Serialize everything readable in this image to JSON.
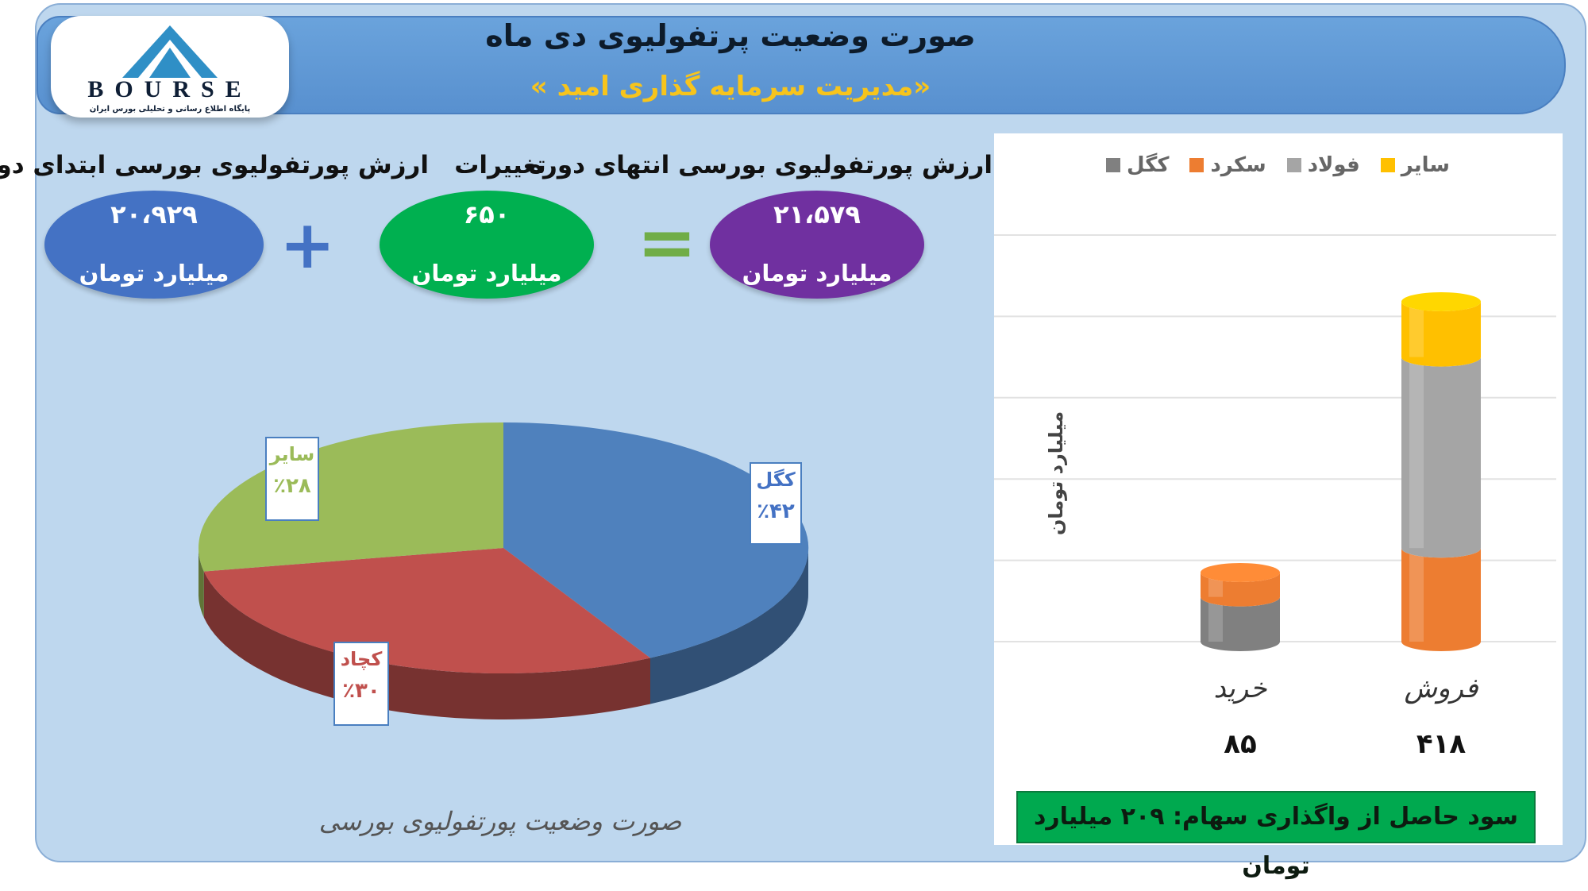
{
  "header": {
    "title": "صورت وضعیت پرتفولیوی دی ماه",
    "subtitle": "«مدیریت سرمایه گذاری امید »",
    "logo_text": "BOURSE",
    "logo_subtitle": "پایگاه اطلاع رسانی و تحلیلی بورس ایران"
  },
  "summary": {
    "start_label": "ارزش پورتفولیوی بورسی ابتدای دوره",
    "start_value": "۲۰،۹۲۹",
    "change_label": "تغییرات",
    "change_value": "۶۵۰",
    "end_label": "ارزش پورتفولیوی بورسی انتهای دوره",
    "end_value": "۲۱،۵۷۹",
    "unit": "میلیارد تومان",
    "plus_sign": "+",
    "equals_sign": "=",
    "colors": {
      "start": "#4472c4",
      "change": "#00b050",
      "end": "#7030a0",
      "plus": "#4472c4",
      "equals": "#70ad47"
    }
  },
  "chart_data": [
    {
      "type": "bar",
      "title": "",
      "ylabel": "میلیارد تومان",
      "ylim": [
        0,
        500
      ],
      "yticks": [
        0,
        100,
        200,
        300,
        400,
        500
      ],
      "categories": [
        "خرید",
        "فروش"
      ],
      "totals": [
        "۸۵",
        "۴۱۸"
      ],
      "legend_position": "top",
      "series": [
        {
          "name": "کگل",
          "color": "#808080",
          "values": [
            55,
            0
          ]
        },
        {
          "name": "سکرد",
          "color": "#ed7d31",
          "values": [
            30,
            115
          ]
        },
        {
          "name": "فولاد",
          "color": "#a5a5a5",
          "values": [
            0,
            235
          ]
        },
        {
          "name": "سایر",
          "color": "#ffc000",
          "values": [
            0,
            68
          ]
        }
      ]
    },
    {
      "type": "pie",
      "title": "صورت وضعیت پورتفولیوی بورسی",
      "slices": [
        {
          "name": "کگل",
          "percent": 42,
          "label": "٪۴۲",
          "color": "#4f81bd"
        },
        {
          "name": "کچاد",
          "percent": 30,
          "label": "٪۳۰",
          "color": "#c0504d"
        },
        {
          "name": "سایر",
          "percent": 28,
          "label": "٪۲۸",
          "color": "#9bbb59"
        }
      ]
    }
  ],
  "profit_note": "سود حاصل از واگذاری سهام: ۲۰۹ میلیارد تومان"
}
